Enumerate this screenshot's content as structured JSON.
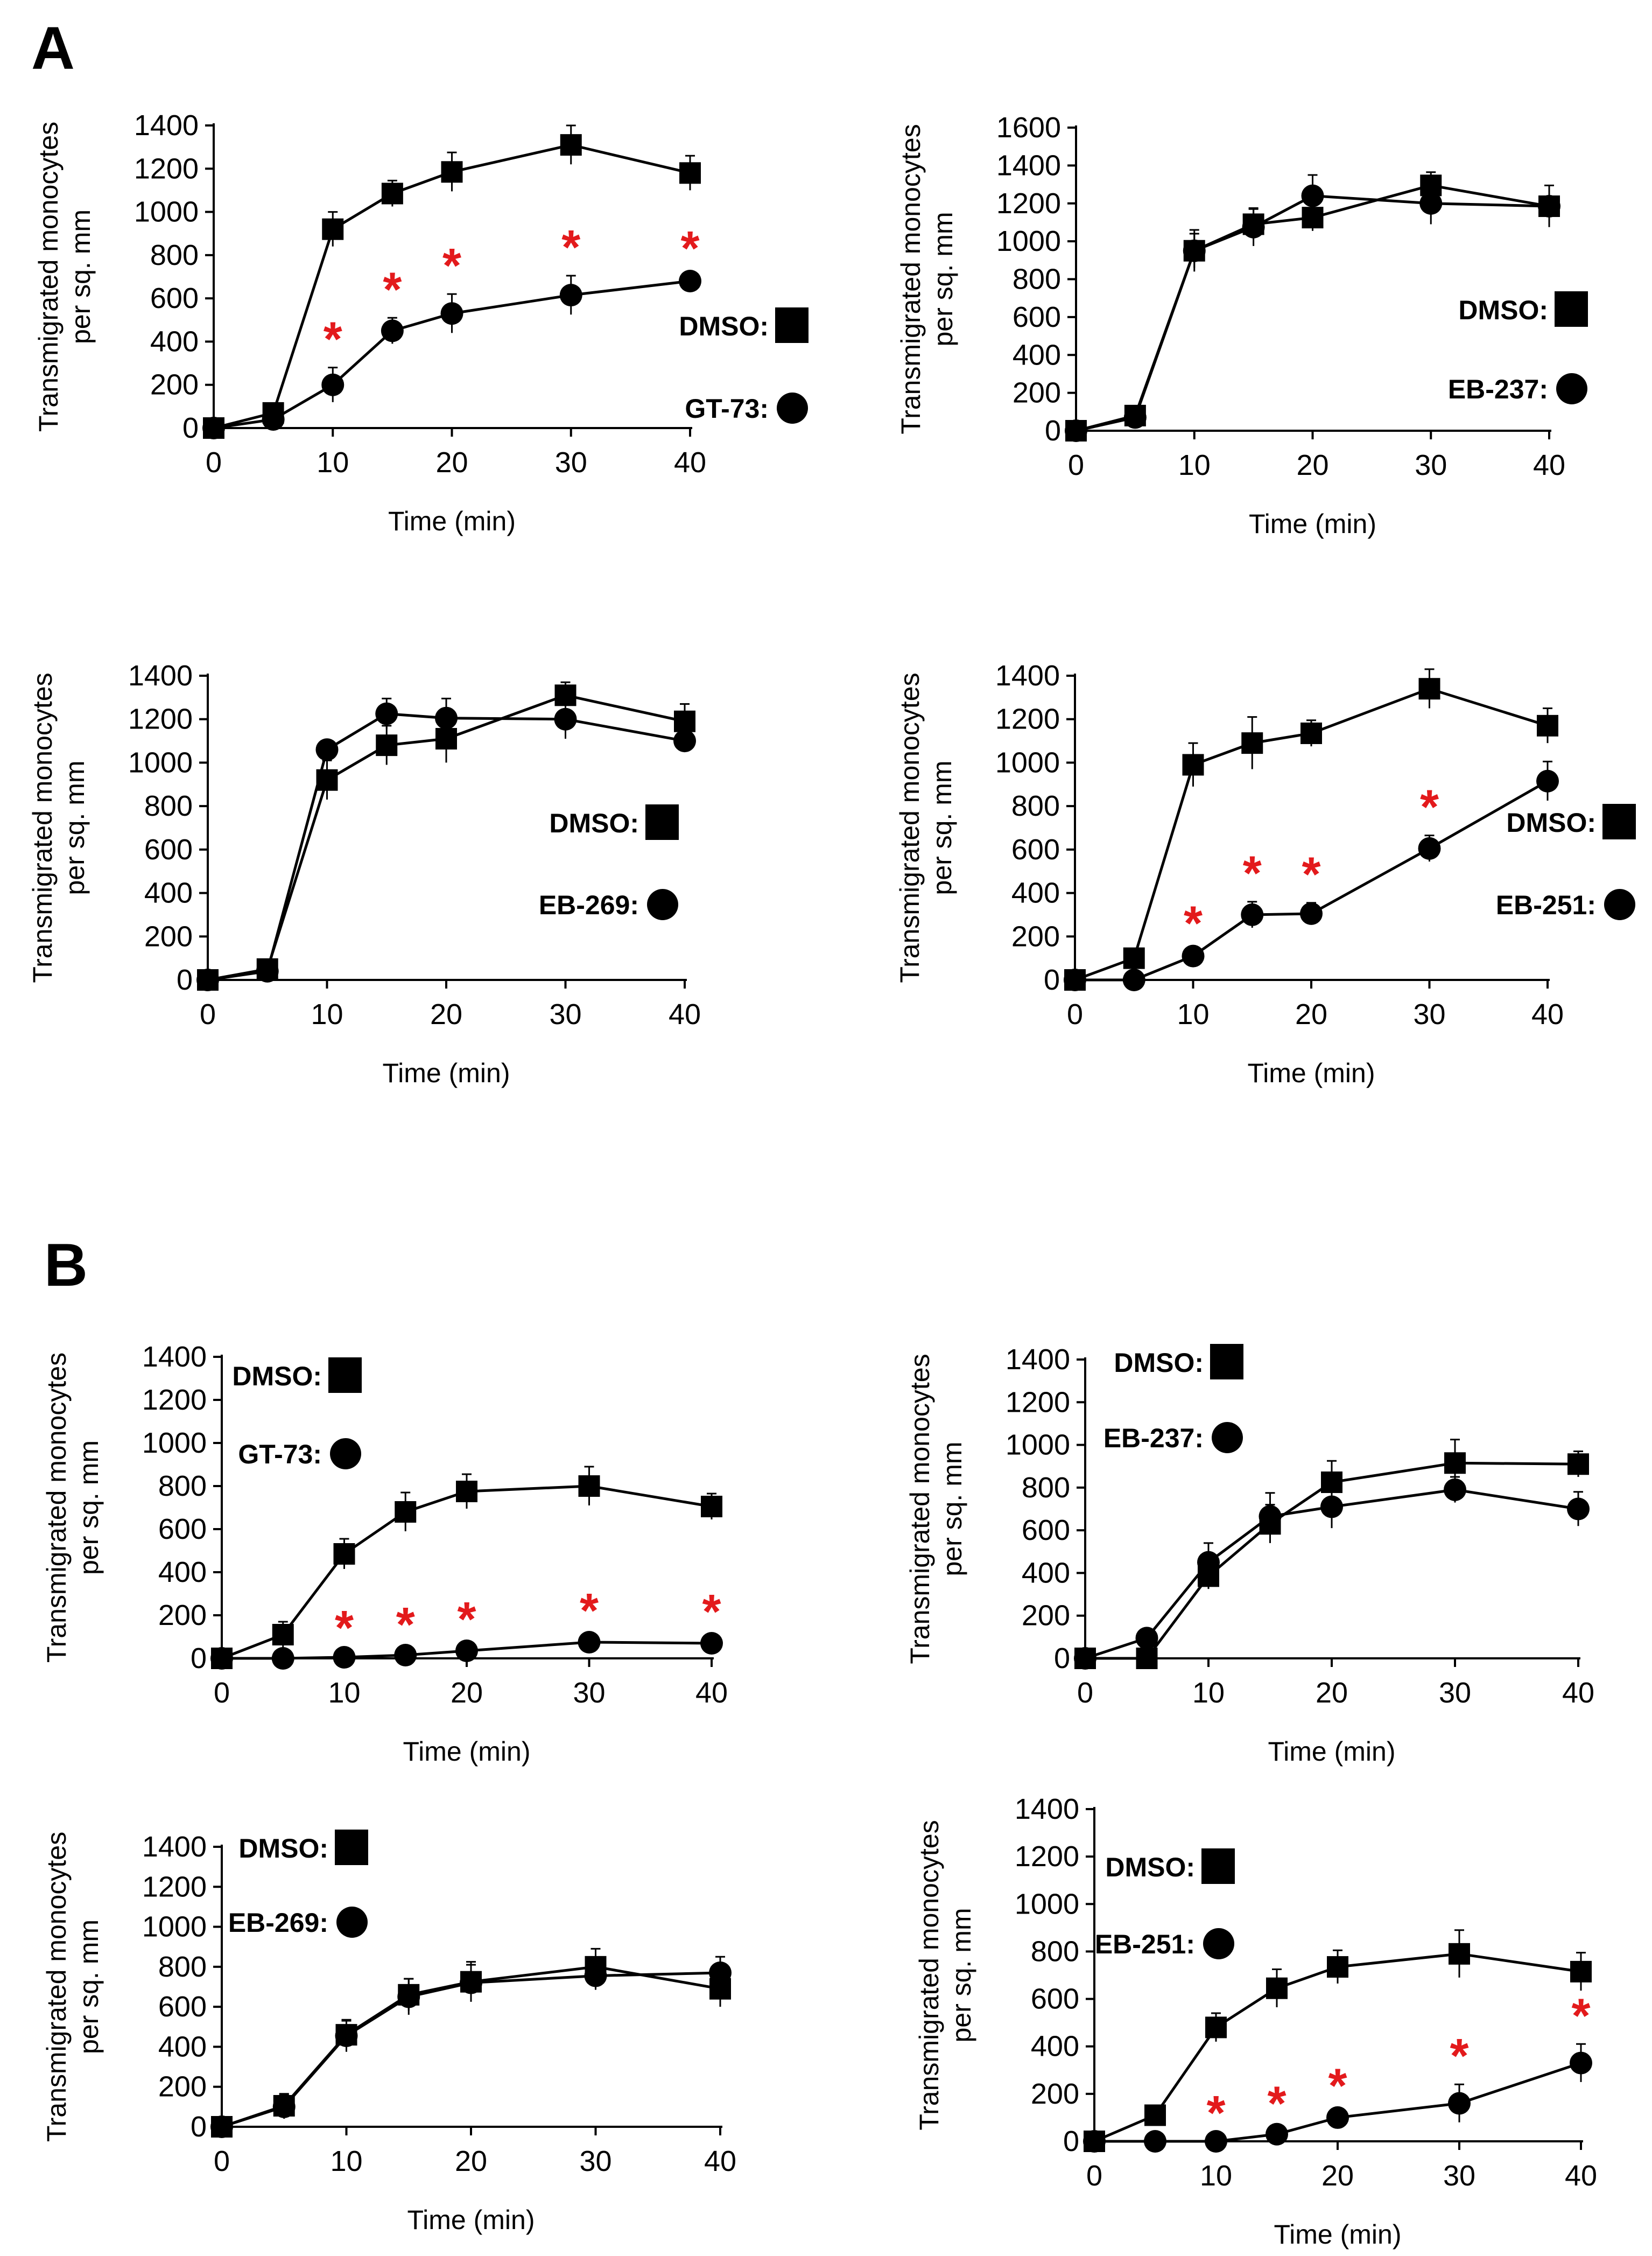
{
  "figure": {
    "panel_letters": [
      "A",
      "B"
    ]
  },
  "colors": {
    "series": "#000000",
    "significance": "#e31a1c"
  },
  "chart_data": [
    {
      "id": "A1",
      "type": "line",
      "xlabel": "Time (min)",
      "ylabel": [
        "Transmigrated monocytes",
        "per sq. mm"
      ],
      "x": [
        0,
        5,
        10,
        15,
        20,
        30,
        40
      ],
      "xticks": [
        0,
        10,
        20,
        30,
        40
      ],
      "ylim": [
        0,
        1400
      ],
      "yticks": [
        0,
        200,
        400,
        600,
        800,
        1000,
        1200,
        1400
      ],
      "legend_position": "right",
      "series": [
        {
          "name": "DMSO:",
          "marker": "square",
          "values": [
            0,
            70,
            920,
            1085,
            1185,
            1310,
            1180
          ],
          "errors": [
            0,
            15,
            80,
            60,
            90,
            90,
            80
          ]
        },
        {
          "name": "GT-73:",
          "marker": "circle",
          "values": [
            0,
            40,
            200,
            450,
            530,
            615,
            680
          ],
          "errors": [
            0,
            10,
            80,
            60,
            90,
            90,
            20
          ]
        }
      ],
      "significant_x": [
        10,
        15,
        20,
        30,
        40
      ],
      "significance_mark": "*"
    },
    {
      "id": "A2",
      "type": "line",
      "xlabel": "Time (min)",
      "ylabel": [
        "Transmigrated monocytes",
        "per sq. mm"
      ],
      "x": [
        0,
        5,
        10,
        15,
        20,
        30,
        40
      ],
      "xticks": [
        0,
        10,
        20,
        30,
        40
      ],
      "ylim": [
        0,
        1600
      ],
      "yticks": [
        0,
        200,
        400,
        600,
        800,
        1000,
        1200,
        1400,
        1600
      ],
      "legend_position": "right",
      "series": [
        {
          "name": "DMSO:",
          "marker": "square",
          "values": [
            0,
            80,
            950,
            1090,
            1125,
            1295,
            1185
          ],
          "errors": [
            0,
            15,
            110,
            80,
            70,
            70,
            110
          ]
        },
        {
          "name": "EB-237:",
          "marker": "circle",
          "values": [
            0,
            70,
            950,
            1075,
            1240,
            1200,
            1185
          ],
          "errors": [
            0,
            15,
            90,
            100,
            110,
            110,
            40
          ]
        }
      ],
      "significant_x": [],
      "significance_mark": "*"
    },
    {
      "id": "A3",
      "type": "line",
      "xlabel": "Time (min)",
      "ylabel": [
        "Transmigrated monocytes",
        "per sq. mm"
      ],
      "x": [
        0,
        5,
        10,
        15,
        20,
        30,
        40
      ],
      "xticks": [
        0,
        10,
        20,
        30,
        40
      ],
      "ylim": [
        0,
        1400
      ],
      "yticks": [
        0,
        200,
        400,
        600,
        800,
        1000,
        1200,
        1400
      ],
      "legend_position": "right",
      "series": [
        {
          "name": "DMSO:",
          "marker": "square",
          "values": [
            0,
            50,
            920,
            1080,
            1110,
            1310,
            1190
          ],
          "errors": [
            0,
            15,
            90,
            90,
            110,
            60,
            80
          ]
        },
        {
          "name": "EB-269:",
          "marker": "circle",
          "values": [
            0,
            40,
            1060,
            1225,
            1205,
            1200,
            1100
          ],
          "errors": [
            0,
            15,
            40,
            70,
            90,
            90,
            30
          ]
        }
      ],
      "significant_x": [],
      "significance_mark": "*"
    },
    {
      "id": "A4",
      "type": "line",
      "xlabel": "Time (min)",
      "ylabel": [
        "Transmigrated monocytes",
        "per sq. mm"
      ],
      "x": [
        0,
        5,
        10,
        15,
        20,
        30,
        40
      ],
      "xticks": [
        0,
        10,
        20,
        30,
        40
      ],
      "ylim": [
        0,
        1400
      ],
      "yticks": [
        0,
        200,
        400,
        600,
        800,
        1000,
        1200,
        1400
      ],
      "legend_position": "right",
      "series": [
        {
          "name": "DMSO:",
          "marker": "square",
          "values": [
            0,
            100,
            990,
            1090,
            1135,
            1340,
            1170
          ],
          "errors": [
            0,
            20,
            100,
            120,
            60,
            90,
            80
          ]
        },
        {
          "name": "EB-251:",
          "marker": "circle",
          "values": [
            0,
            0,
            110,
            300,
            305,
            605,
            915
          ],
          "errors": [
            0,
            0,
            20,
            60,
            50,
            60,
            90
          ]
        }
      ],
      "significant_x": [
        10,
        15,
        20,
        30
      ],
      "significance_mark": "*"
    },
    {
      "id": "B1",
      "type": "line",
      "xlabel": "Time (min)",
      "ylabel": [
        "Transmigrated monocytes",
        "per sq. mm"
      ],
      "x": [
        0,
        5,
        10,
        15,
        20,
        30,
        40
      ],
      "xticks": [
        0,
        10,
        20,
        30,
        40
      ],
      "ylim": [
        0,
        1400
      ],
      "yticks": [
        0,
        200,
        400,
        600,
        800,
        1000,
        1200,
        1400
      ],
      "legend_position": "top-left",
      "series": [
        {
          "name": "DMSO:",
          "marker": "square",
          "values": [
            0,
            110,
            485,
            680,
            775,
            800,
            705
          ],
          "errors": [
            0,
            60,
            70,
            90,
            80,
            90,
            60
          ]
        },
        {
          "name": "GT-73:",
          "marker": "circle",
          "values": [
            0,
            0,
            5,
            15,
            35,
            75,
            70
          ],
          "errors": [
            0,
            0,
            5,
            10,
            15,
            15,
            15
          ]
        }
      ],
      "significant_x": [
        10,
        15,
        20,
        30,
        40
      ],
      "significance_mark": "*"
    },
    {
      "id": "B2",
      "type": "line",
      "xlabel": "Time (min)",
      "ylabel": [
        "Transmigrated monocytes",
        "per sq. mm"
      ],
      "x": [
        0,
        5,
        10,
        15,
        20,
        30,
        40
      ],
      "xticks": [
        0,
        10,
        20,
        30,
        40
      ],
      "ylim": [
        0,
        1400
      ],
      "yticks": [
        0,
        200,
        400,
        600,
        800,
        1000,
        1200,
        1400
      ],
      "legend_position": "top-left",
      "series": [
        {
          "name": "DMSO:",
          "marker": "square",
          "values": [
            0,
            0,
            385,
            630,
            825,
            915,
            910
          ],
          "errors": [
            0,
            0,
            60,
            90,
            100,
            110,
            60
          ]
        },
        {
          "name": "EB-237:",
          "marker": "circle",
          "values": [
            0,
            95,
            450,
            665,
            710,
            790,
            700
          ],
          "errors": [
            0,
            15,
            90,
            110,
            100,
            60,
            80
          ]
        }
      ],
      "significant_x": [],
      "significance_mark": "*"
    },
    {
      "id": "B3",
      "type": "line",
      "xlabel": "Time (min)",
      "ylabel": [
        "Transmigrated monocytes",
        "per sq. mm"
      ],
      "x": [
        0,
        5,
        10,
        15,
        20,
        30,
        40
      ],
      "xticks": [
        0,
        10,
        20,
        30,
        40
      ],
      "ylim": [
        0,
        1400
      ],
      "yticks": [
        0,
        200,
        400,
        600,
        800,
        1000,
        1200,
        1400
      ],
      "legend_position": "top-left",
      "series": [
        {
          "name": "DMSO:",
          "marker": "square",
          "values": [
            0,
            105,
            460,
            660,
            725,
            800,
            690
          ],
          "errors": [
            0,
            60,
            70,
            80,
            100,
            90,
            90
          ]
        },
        {
          "name": "EB-269:",
          "marker": "circle",
          "values": [
            0,
            100,
            455,
            650,
            720,
            755,
            770
          ],
          "errors": [
            0,
            60,
            80,
            90,
            90,
            70,
            80
          ]
        }
      ],
      "significant_x": [],
      "significance_mark": "*"
    },
    {
      "id": "B4",
      "type": "line",
      "xlabel": "Time (min)",
      "ylabel": [
        "Transmigrated monocytes",
        "per sq. mm"
      ],
      "x": [
        0,
        5,
        10,
        15,
        20,
        30,
        40
      ],
      "xticks": [
        0,
        10,
        20,
        30,
        40
      ],
      "ylim": [
        0,
        1400
      ],
      "yticks": [
        0,
        200,
        400,
        600,
        800,
        1000,
        1200,
        1400
      ],
      "legend_position": "top-left",
      "series": [
        {
          "name": "DMSO:",
          "marker": "square",
          "values": [
            0,
            110,
            480,
            645,
            735,
            790,
            715
          ],
          "errors": [
            0,
            20,
            60,
            80,
            70,
            100,
            80
          ]
        },
        {
          "name": "EB-251:",
          "marker": "circle",
          "values": [
            0,
            0,
            0,
            30,
            100,
            160,
            330
          ],
          "errors": [
            0,
            0,
            0,
            10,
            15,
            80,
            80
          ]
        }
      ],
      "significant_x": [
        10,
        15,
        20,
        30,
        40
      ],
      "significance_mark": "*"
    }
  ]
}
